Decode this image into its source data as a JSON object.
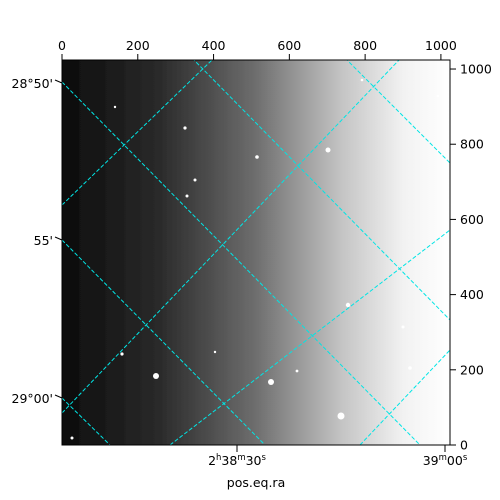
{
  "figure": {
    "xlabel_bottom": "pos.eq.ra",
    "top_axis": {
      "range": [
        0,
        1024
      ],
      "ticks": [
        "0",
        "200",
        "400",
        "600",
        "800",
        "1000"
      ]
    },
    "right_axis": {
      "range": [
        0,
        1024
      ],
      "ticks": [
        "0",
        "200",
        "400",
        "600",
        "800",
        "1000"
      ]
    },
    "bottom_ra_ticks": [
      {
        "h": "2",
        "h_unit": "h",
        "m": "38",
        "m_unit": "m",
        "s": "30",
        "s_unit": "s"
      },
      {
        "m": "39",
        "m_unit": "m",
        "s": "00",
        "s_unit": "s"
      }
    ],
    "left_dec_ticks": [
      "28°50'",
      "55'",
      "29°00'"
    ],
    "grid_color": "#00e5e5",
    "image": "astronomical-field-grayscale-gradient"
  }
}
